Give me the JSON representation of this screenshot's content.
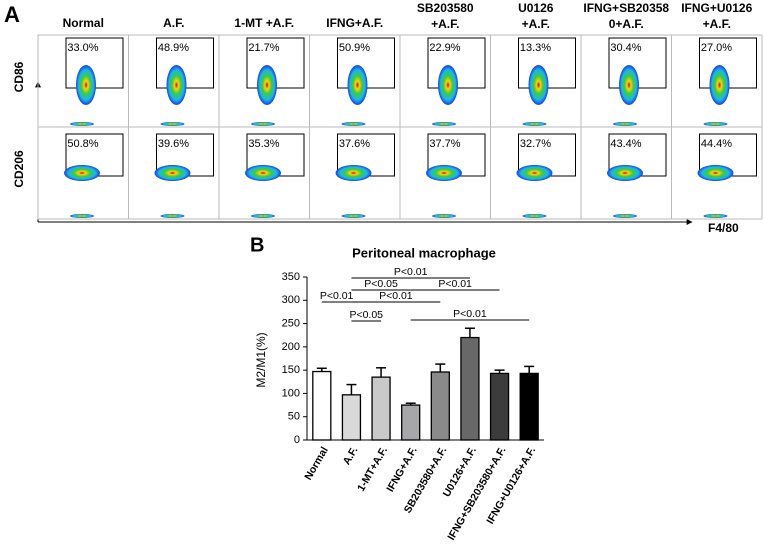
{
  "panel_a": {
    "label": "A",
    "columns": [
      [
        "Normal"
      ],
      [
        "A.F."
      ],
      [
        "1-MT +A.F."
      ],
      [
        "IFNG+A.F."
      ],
      [
        "SB203580",
        "+A.F."
      ],
      [
        "U0126",
        "+A.F."
      ],
      [
        "IFNG+SB20358",
        "0+A.F."
      ],
      [
        "IFNG+U0126",
        "+A.F."
      ]
    ],
    "rows": [
      {
        "label": "CD86",
        "gates": [
          "33.0%",
          "48.9%",
          "21.7%",
          "50.9%",
          "22.9%",
          "13.3%",
          "30.4%",
          "27.0%"
        ]
      },
      {
        "label": "CD206",
        "gates": [
          "50.8%",
          "39.6%",
          "35.3%",
          "37.6%",
          "37.7%",
          "32.7%",
          "43.4%",
          "44.4%"
        ]
      }
    ],
    "x_label": "F4/80"
  },
  "chart_data": {
    "type": "bar",
    "panel_label": "B",
    "title": "Peritoneal macrophage",
    "y_label": "M2/M1(%)",
    "categories": [
      "Normal",
      "A.F.",
      "1-MT+A.F.",
      "IFNG+A.F.",
      "SB203580+A.F.",
      "U0126+A.F.",
      "IFNG+SB203580+A.F.",
      "IFNG+U0126+A.F."
    ],
    "values": [
      147,
      97,
      135,
      75,
      146,
      220,
      143,
      143
    ],
    "errors": [
      7,
      22,
      20,
      4,
      17,
      20,
      7,
      15
    ],
    "colors": [
      "#ffffff",
      "#d9d9d9",
      "#c9c9c9",
      "#a7a7aa",
      "#8a8a8a",
      "#686868",
      "#3c3c3c",
      "#000000"
    ],
    "ylim": [
      0,
      350
    ],
    "yticks": [
      0,
      50,
      100,
      150,
      200,
      250,
      300,
      350
    ],
    "annotations": [
      {
        "label": "P<0.01",
        "from": "A.F.",
        "to": "U0126+A.F."
      },
      {
        "label": "P<0.05",
        "from": "A.F.",
        "to": "IFNG+A.F."
      },
      {
        "label": "P<0.01",
        "from": "IFNG+A.F.",
        "to": "IFNG+SB203580+A.F."
      },
      {
        "label": "P<0.01",
        "from": "Normal",
        "to": "A.F."
      },
      {
        "label": "P<0.01",
        "from": "A.F.",
        "to": "SB203580+A.F."
      },
      {
        "label": "P<0.05",
        "from": "A.F.",
        "to": "1-MT+A.F."
      },
      {
        "label": "P<0.01",
        "from": "IFNG+A.F.",
        "to": "IFNG+U0126+A.F."
      }
    ]
  }
}
